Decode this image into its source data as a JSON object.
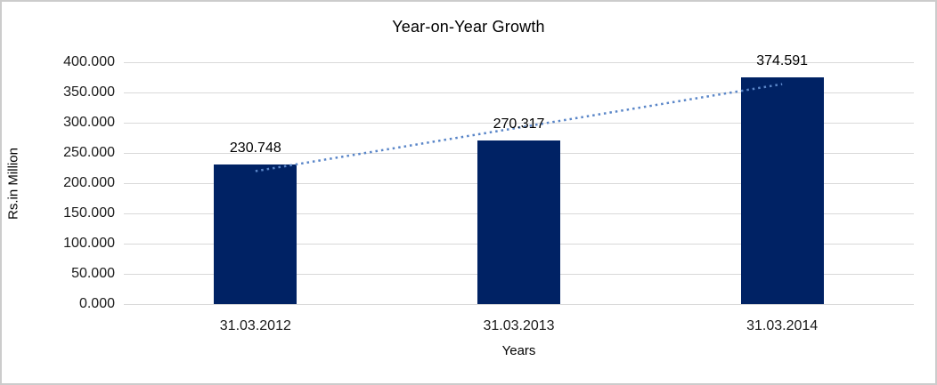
{
  "chart_data": {
    "type": "bar",
    "title": "Year-on-Year Growth",
    "xlabel": "Years",
    "ylabel": "Rs.in Million",
    "categories": [
      "31.03.2012",
      "31.03.2013",
      "31.03.2014"
    ],
    "values": [
      230.748,
      270.317,
      374.591
    ],
    "data_labels": [
      "230.748",
      "270.317",
      "374.591"
    ],
    "ylim": [
      0,
      400
    ],
    "ytick_step": 50,
    "ytick_labels": [
      "0.000",
      "50.000",
      "100.000",
      "150.000",
      "200.000",
      "250.000",
      "300.000",
      "350.000",
      "400.000"
    ],
    "grid": "horizontal",
    "legend": "none",
    "colors": {
      "bar": "#002264",
      "trendline": "#5a86c8",
      "gridline": "#d9d9d9",
      "text": "#000000",
      "frame_border": "#cccccc"
    },
    "trendline": {
      "type": "linear",
      "style": "dotted"
    }
  }
}
